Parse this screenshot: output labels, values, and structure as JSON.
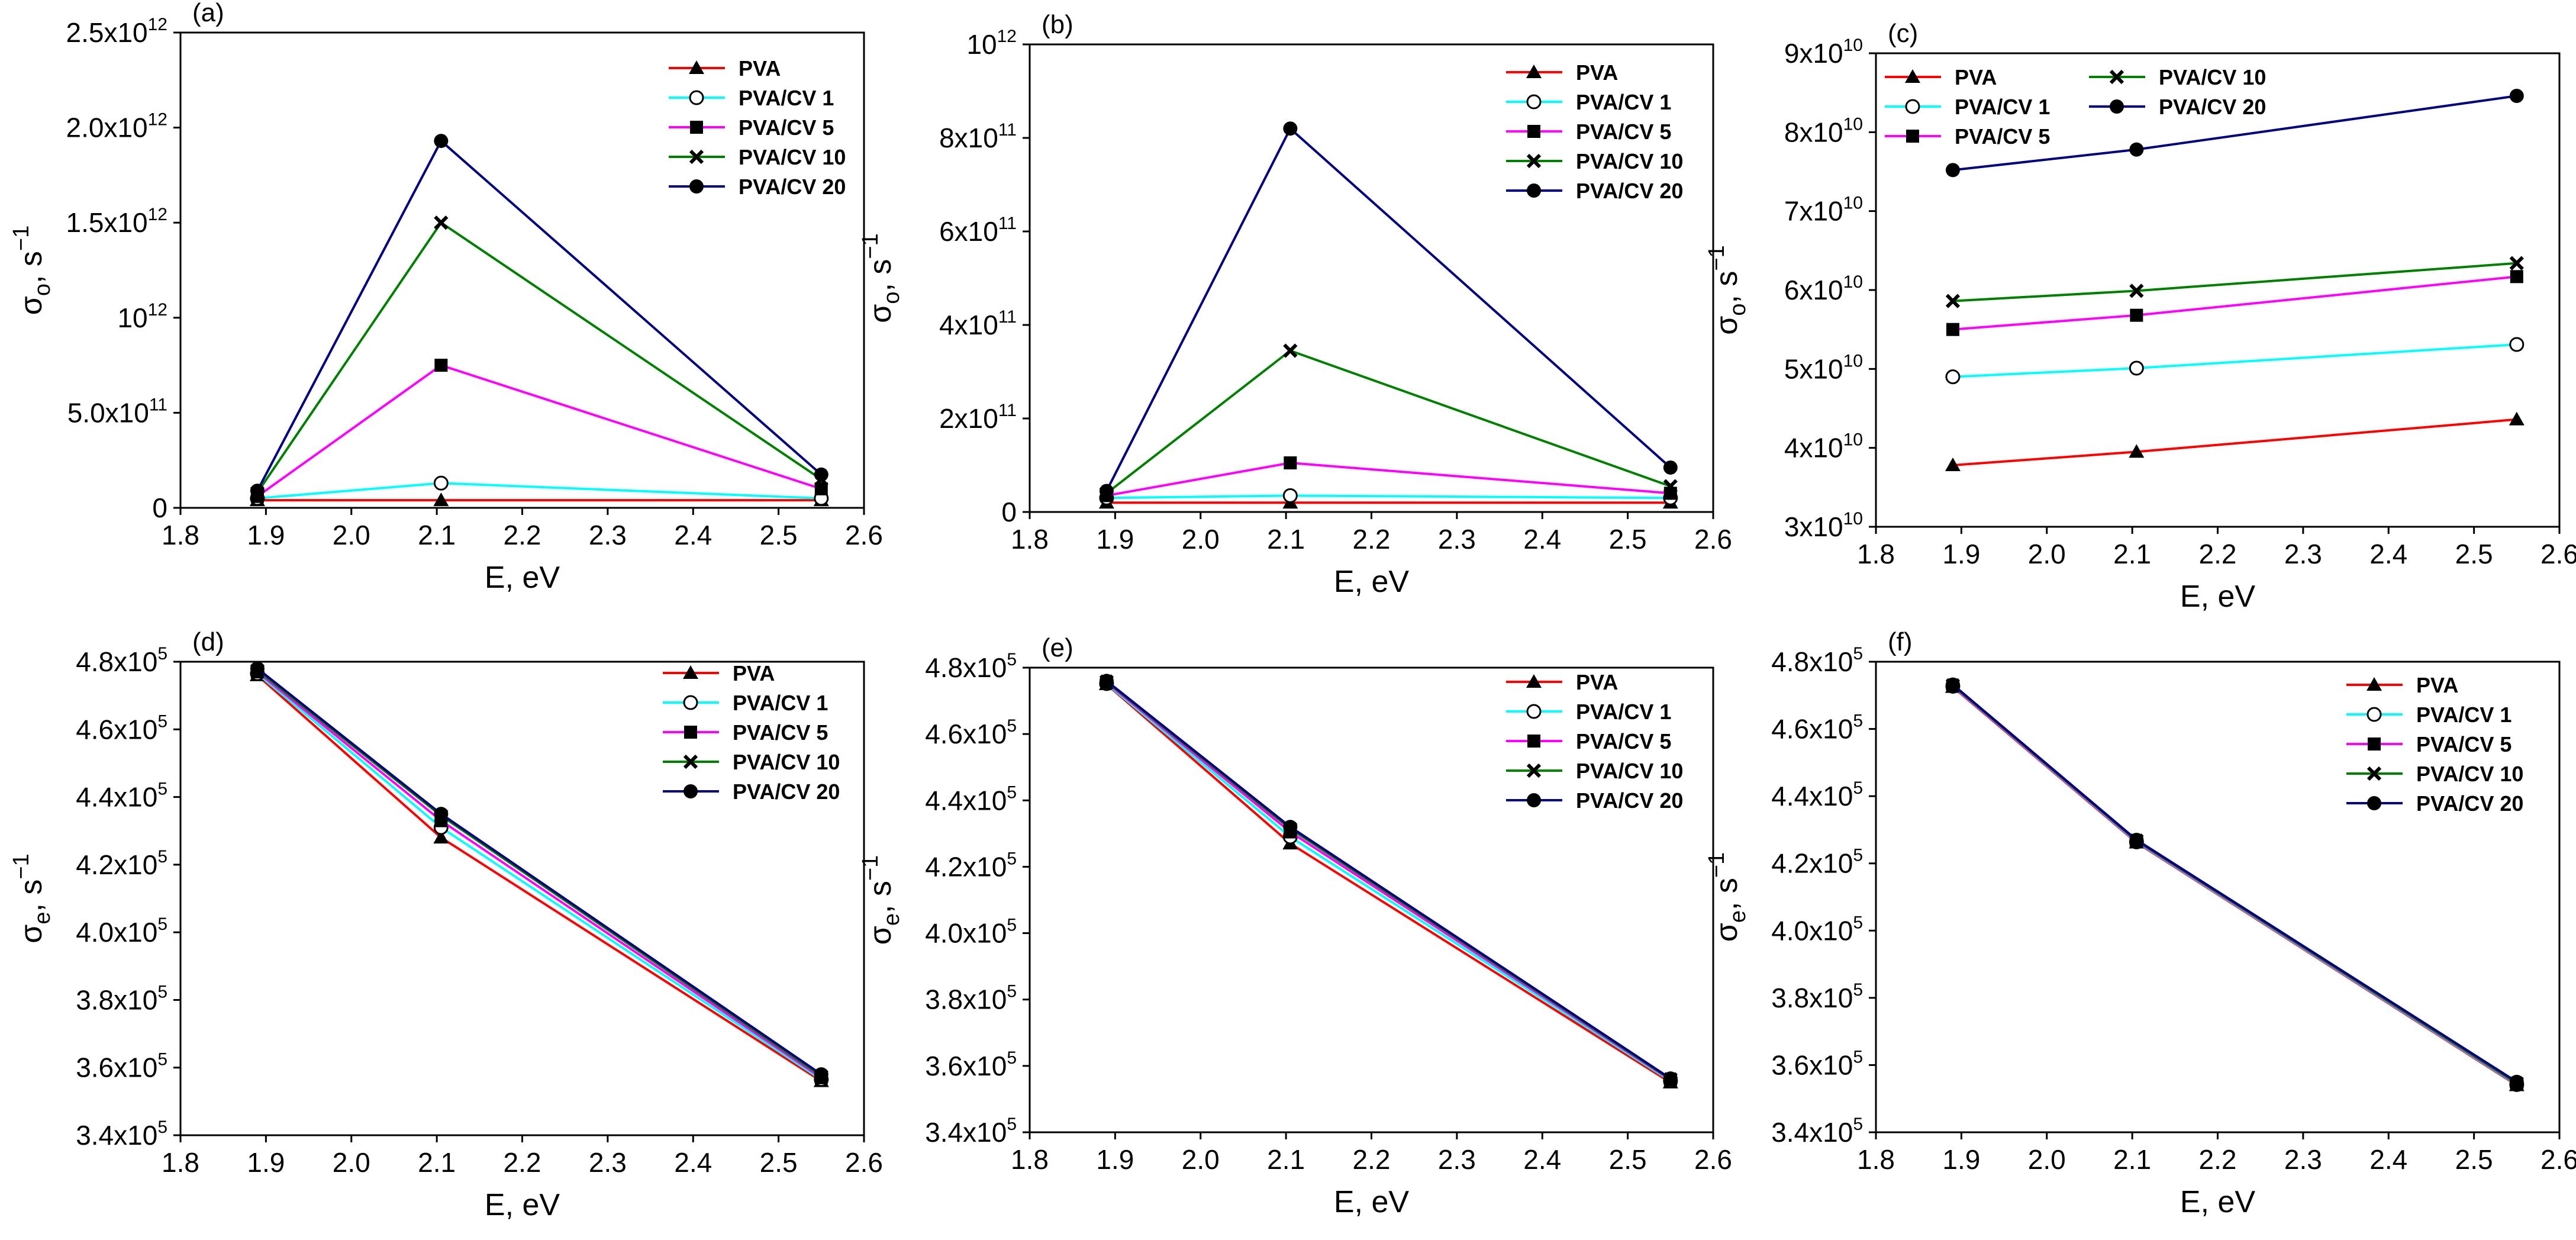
{
  "series_styles": [
    {
      "name": "PVA",
      "color": "#ff0000",
      "marker": "triangle"
    },
    {
      "name": "PVA/CV 1",
      "color": "#00ffff",
      "marker": "circle-open"
    },
    {
      "name": "PVA/CV 5",
      "color": "#ff00ff",
      "marker": "square"
    },
    {
      "name": "PVA/CV 10",
      "color": "#008000",
      "marker": "x"
    },
    {
      "name": "PVA/CV 20",
      "color": "#000080",
      "marker": "circle"
    }
  ],
  "chart_data": [
    {
      "panel": "(a)",
      "type": "line",
      "xlabel": "E, eV",
      "ylabel_base": "σ",
      "ylabel_sub": "o",
      "ylabel_rest": ", s",
      "ylabel_sup": "−1",
      "xlim": [
        1.8,
        2.6
      ],
      "ylim": [
        0,
        2500000000000.0
      ],
      "xticks": [
        "1.8",
        "1.9",
        "2.0",
        "2.1",
        "2.2",
        "2.3",
        "2.4",
        "2.5",
        "2.6"
      ],
      "yticks": [
        {
          "value": 0,
          "label": "0"
        },
        {
          "value": 500000000000.0,
          "label": "5.0x10",
          "exp": "11"
        },
        {
          "value": 1000000000000.0,
          "label": "10",
          "exp": "12"
        },
        {
          "value": 1500000000000.0,
          "label": "1.5x10",
          "exp": "12"
        },
        {
          "value": 2000000000000.0,
          "label": "2.0x10",
          "exp": "12"
        },
        {
          "value": 2500000000000.0,
          "label": "2.5x10",
          "exp": "12"
        }
      ],
      "legend_layout": "column",
      "x": [
        1.89,
        2.105,
        2.55
      ],
      "series": [
        {
          "name": "PVA",
          "values": [
            40000000000.0,
            40000000000.0,
            40000000000.0
          ]
        },
        {
          "name": "PVA/CV 1",
          "values": [
            50000000000.0,
            130000000000.0,
            50000000000.0
          ]
        },
        {
          "name": "PVA/CV 5",
          "values": [
            60000000000.0,
            750000000000.0,
            100000000000.0
          ]
        },
        {
          "name": "PVA/CV 10",
          "values": [
            80000000000.0,
            1500000000000.0,
            150000000000.0
          ]
        },
        {
          "name": "PVA/CV 20",
          "values": [
            90000000000.0,
            1930000000000.0,
            175000000000.0
          ]
        }
      ]
    },
    {
      "panel": "(b)",
      "type": "line",
      "xlabel": "E, eV",
      "ylabel_base": "σ",
      "ylabel_sub": "o",
      "ylabel_rest": ", s",
      "ylabel_sup": "−1",
      "xlim": [
        1.8,
        2.6
      ],
      "ylim": [
        0,
        1000000000000.0
      ],
      "xticks": [
        "1.8",
        "1.9",
        "2.0",
        "2.1",
        "2.2",
        "2.3",
        "2.4",
        "2.5",
        "2.6"
      ],
      "yticks": [
        {
          "value": 0,
          "label": "0"
        },
        {
          "value": 200000000000.0,
          "label": "2x10",
          "exp": "11"
        },
        {
          "value": 400000000000.0,
          "label": "4x10",
          "exp": "11"
        },
        {
          "value": 600000000000.0,
          "label": "6x10",
          "exp": "11"
        },
        {
          "value": 800000000000.0,
          "label": "8x10",
          "exp": "11"
        },
        {
          "value": 1000000000000.0,
          "label": "10",
          "exp": "12"
        }
      ],
      "legend_layout": "column",
      "x": [
        1.89,
        2.105,
        2.55
      ],
      "series": [
        {
          "name": "PVA",
          "values": [
            20000000000.0,
            20000000000.0,
            20000000000.0
          ]
        },
        {
          "name": "PVA/CV 1",
          "values": [
            30000000000.0,
            35000000000.0,
            30000000000.0
          ]
        },
        {
          "name": "PVA/CV 5",
          "values": [
            35000000000.0,
            105000000000.0,
            40000000000.0
          ]
        },
        {
          "name": "PVA/CV 10",
          "values": [
            40000000000.0,
            345000000000.0,
            55000000000.0
          ]
        },
        {
          "name": "PVA/CV 20",
          "values": [
            45000000000.0,
            820000000000.0,
            95000000000.0
          ]
        }
      ]
    },
    {
      "panel": "(c)",
      "type": "line",
      "xlabel": "E, eV",
      "ylabel_base": "σ",
      "ylabel_sub": "o",
      "ylabel_rest": ", s",
      "ylabel_sup": "−1",
      "xlim": [
        1.8,
        2.6
      ],
      "ylim": [
        30000000000.0,
        90000000000.0
      ],
      "xticks": [
        "1.8",
        "1.9",
        "2.0",
        "2.1",
        "2.2",
        "2.3",
        "2.4",
        "2.5",
        "2.6"
      ],
      "yticks": [
        {
          "value": 30000000000.0,
          "label": "3x10",
          "exp": "10"
        },
        {
          "value": 40000000000.0,
          "label": "4x10",
          "exp": "10"
        },
        {
          "value": 50000000000.0,
          "label": "5x10",
          "exp": "10"
        },
        {
          "value": 60000000000.0,
          "label": "6x10",
          "exp": "10"
        },
        {
          "value": 70000000000.0,
          "label": "7x10",
          "exp": "10"
        },
        {
          "value": 80000000000.0,
          "label": "8x10",
          "exp": "10"
        },
        {
          "value": 90000000000.0,
          "label": "9x10",
          "exp": "10"
        }
      ],
      "legend_layout": "two-column",
      "x": [
        1.89,
        2.105,
        2.55
      ],
      "series": [
        {
          "name": "PVA",
          "values": [
            37800000000.0,
            39500000000.0,
            43600000000.0
          ]
        },
        {
          "name": "PVA/CV 1",
          "values": [
            49000000000.0,
            50100000000.0,
            53100000000.0
          ]
        },
        {
          "name": "PVA/CV 5",
          "values": [
            55000000000.0,
            56800000000.0,
            61700000000.0
          ]
        },
        {
          "name": "PVA/CV 10",
          "values": [
            58600000000.0,
            59900000000.0,
            63400000000.0
          ]
        },
        {
          "name": "PVA/CV 20",
          "values": [
            75200000000.0,
            77800000000.0,
            84600000000.0
          ]
        }
      ]
    },
    {
      "panel": "(d)",
      "type": "line",
      "xlabel": "E, eV",
      "ylabel_base": "σ",
      "ylabel_sub": "e",
      "ylabel_rest": ", s",
      "ylabel_sup": "−1",
      "xlim": [
        1.8,
        2.6
      ],
      "ylim": [
        340000.0,
        480000.0
      ],
      "xticks": [
        "1.8",
        "1.9",
        "2.0",
        "2.1",
        "2.2",
        "2.3",
        "2.4",
        "2.5",
        "2.6"
      ],
      "yticks": [
        {
          "value": 340000.0,
          "label": "3.4x10",
          "exp": "5"
        },
        {
          "value": 360000.0,
          "label": "3.6x10",
          "exp": "5"
        },
        {
          "value": 380000.0,
          "label": "3.8x10",
          "exp": "5"
        },
        {
          "value": 400000.0,
          "label": "4.0x10",
          "exp": "5"
        },
        {
          "value": 420000.0,
          "label": "4.2x10",
          "exp": "5"
        },
        {
          "value": 440000.0,
          "label": "4.4x10",
          "exp": "5"
        },
        {
          "value": 460000.0,
          "label": "4.6x10",
          "exp": "5"
        },
        {
          "value": 480000.0,
          "label": "4.8x10",
          "exp": "5"
        }
      ],
      "legend_layout": "column",
      "x": [
        1.89,
        2.105,
        2.55
      ],
      "series": [
        {
          "name": "PVA",
          "values": [
            476000.0,
            428000.0,
            356000.0
          ]
        },
        {
          "name": "PVA/CV 1",
          "values": [
            476500.0,
            431000.0,
            356500.0
          ]
        },
        {
          "name": "PVA/CV 5",
          "values": [
            477000.0,
            433000.0,
            357000.0
          ]
        },
        {
          "name": "PVA/CV 10",
          "values": [
            477500.0,
            434500.0,
            357500.0
          ]
        },
        {
          "name": "PVA/CV 20",
          "values": [
            478000.0,
            435000.0,
            358000.0
          ]
        }
      ]
    },
    {
      "panel": "(e)",
      "type": "line",
      "xlabel": "E, eV",
      "ylabel_base": "σ",
      "ylabel_sub": "e",
      "ylabel_rest": ", s",
      "ylabel_sup": "−1",
      "xlim": [
        1.8,
        2.6
      ],
      "ylim": [
        340000.0,
        480000.0
      ],
      "xticks": [
        "1.8",
        "1.9",
        "2.0",
        "2.1",
        "2.2",
        "2.3",
        "2.4",
        "2.5",
        "2.6"
      ],
      "yticks": [
        {
          "value": 340000.0,
          "label": "3.4x10",
          "exp": "5"
        },
        {
          "value": 360000.0,
          "label": "3.6x10",
          "exp": "5"
        },
        {
          "value": 380000.0,
          "label": "3.8x10",
          "exp": "5"
        },
        {
          "value": 400000.0,
          "label": "4.0x10",
          "exp": "5"
        },
        {
          "value": 420000.0,
          "label": "4.2x10",
          "exp": "5"
        },
        {
          "value": 440000.0,
          "label": "4.4x10",
          "exp": "5"
        },
        {
          "value": 460000.0,
          "label": "4.6x10",
          "exp": "5"
        },
        {
          "value": 480000.0,
          "label": "4.8x10",
          "exp": "5"
        }
      ],
      "legend_layout": "column",
      "x": [
        1.89,
        2.105,
        2.55
      ],
      "series": [
        {
          "name": "PVA",
          "values": [
            475000.0,
            427000.0,
            355000.0
          ]
        },
        {
          "name": "PVA/CV 1",
          "values": [
            475200.0,
            429000.0,
            355500.0
          ]
        },
        {
          "name": "PVA/CV 5",
          "values": [
            475500.0,
            430500.0,
            355800.0
          ]
        },
        {
          "name": "PVA/CV 10",
          "values": [
            475800.0,
            431500.0,
            356000.0
          ]
        },
        {
          "name": "PVA/CV 20",
          "values": [
            476000.0,
            432000.0,
            356200.0
          ]
        }
      ]
    },
    {
      "panel": "(f)",
      "type": "line",
      "xlabel": "E, eV",
      "ylabel_base": "σ",
      "ylabel_sub": "e",
      "ylabel_rest": ", s",
      "ylabel_sup": "−1",
      "xlim": [
        1.8,
        2.6
      ],
      "ylim": [
        340000.0,
        480000.0
      ],
      "xticks": [
        "1.8",
        "1.9",
        "2.0",
        "2.1",
        "2.2",
        "2.3",
        "2.4",
        "2.5",
        "2.6"
      ],
      "yticks": [
        {
          "value": 340000.0,
          "label": "3.4x10",
          "exp": "5"
        },
        {
          "value": 360000.0,
          "label": "3.6x10",
          "exp": "5"
        },
        {
          "value": 380000.0,
          "label": "3.8x10",
          "exp": "5"
        },
        {
          "value": 400000.0,
          "label": "4.0x10",
          "exp": "5"
        },
        {
          "value": 420000.0,
          "label": "4.2x10",
          "exp": "5"
        },
        {
          "value": 440000.0,
          "label": "4.4x10",
          "exp": "5"
        },
        {
          "value": 460000.0,
          "label": "4.6x10",
          "exp": "5"
        },
        {
          "value": 480000.0,
          "label": "4.8x10",
          "exp": "5"
        }
      ],
      "legend_layout": "column",
      "x": [
        1.89,
        2.105,
        2.55
      ],
      "series": [
        {
          "name": "PVA",
          "values": [
            472500.0,
            426200.0,
            354000.0
          ]
        },
        {
          "name": "PVA/CV 1",
          "values": [
            472700.0,
            426400.0,
            354200.0
          ]
        },
        {
          "name": "PVA/CV 5",
          "values": [
            472800.0,
            426600.0,
            354400.0
          ]
        },
        {
          "name": "PVA/CV 10",
          "values": [
            473000.0,
            426800.0,
            354600.0
          ]
        },
        {
          "name": "PVA/CV 20",
          "values": [
            473200.0,
            427000.0,
            355000.0
          ]
        }
      ]
    }
  ]
}
